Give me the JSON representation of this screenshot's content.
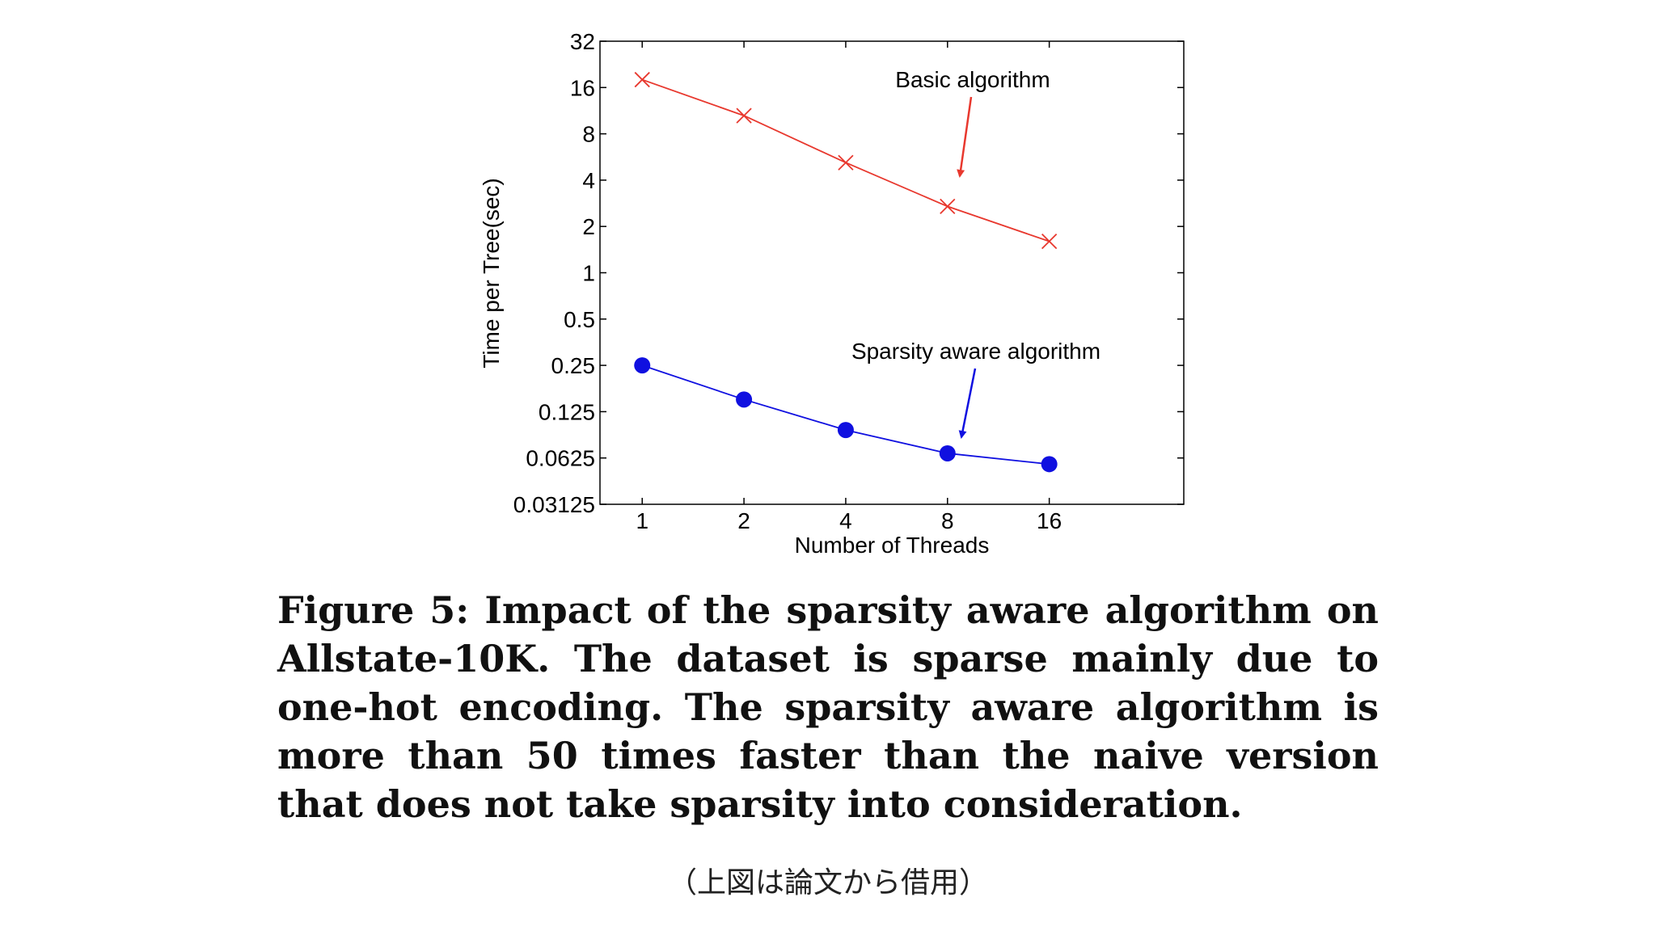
{
  "chart_data": {
    "type": "line",
    "x": [
      1,
      2,
      4,
      8,
      16
    ],
    "x_tick_labels": [
      "1",
      "2",
      "4",
      "8",
      "16"
    ],
    "y_tick_labels": [
      "32",
      "16",
      "8",
      "4",
      "2",
      "1",
      "0.5",
      "0.25",
      "0.125",
      "0.0625",
      "0.03125"
    ],
    "y_ticks": [
      32,
      16,
      8,
      4,
      2,
      1,
      0.5,
      0.25,
      0.125,
      0.0625,
      0.03125
    ],
    "x_scale": "log2",
    "y_scale": "log2",
    "xlim": [
      0.75,
      40
    ],
    "ylim": [
      0.03125,
      32
    ],
    "xlabel": "Number of Threads",
    "ylabel": "Time per Tree(sec)",
    "series": [
      {
        "name": "Basic algorithm",
        "marker": "x",
        "color": "#e8382e",
        "values": [
          18,
          10.5,
          5.2,
          2.7,
          1.6
        ]
      },
      {
        "name": "Sparsity aware algorithm",
        "marker": "o",
        "color": "#1010e0",
        "values": [
          0.25,
          0.15,
          0.095,
          0.067,
          0.057
        ]
      }
    ],
    "annotations": [
      {
        "text": "Basic algorithm",
        "color": "#e8382e"
      },
      {
        "text": "Sparsity aware algorithm",
        "color": "#1010e0"
      }
    ]
  },
  "caption": "Figure 5: Impact of the sparsity aware algorithm on Allstate-10K. The dataset is sparse mainly due to one-hot encoding. The sparsity aware algorithm is more than 50 times faster than the naive version that does not take sparsity into consideration.",
  "credit": "（上図は論文から借用）"
}
